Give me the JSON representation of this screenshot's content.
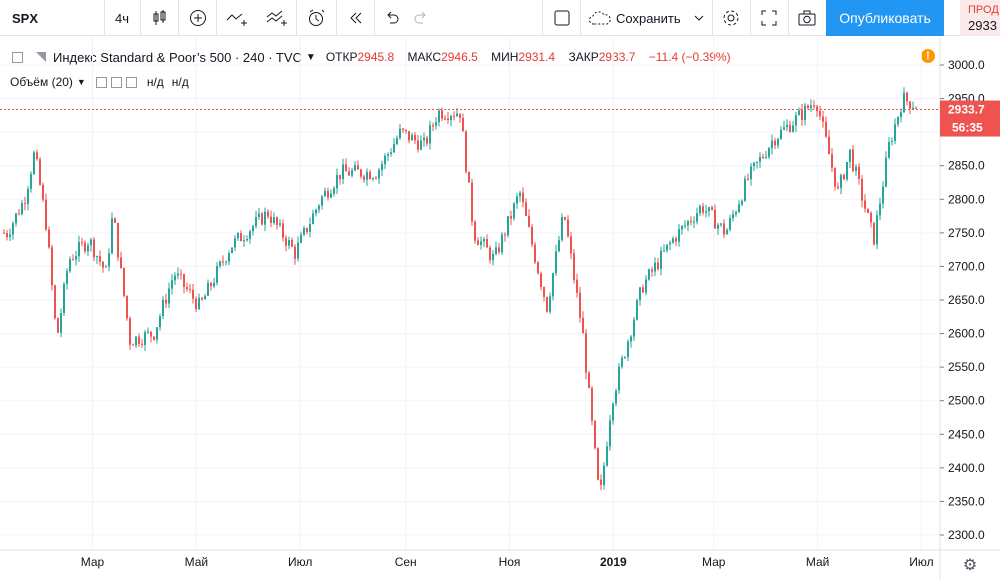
{
  "toolbar": {
    "symbol": "SPX",
    "interval": "4ч",
    "save_label": "Сохранить",
    "publish_label": "Опубликовать",
    "sell_label": "ПРОД",
    "sell_price": "2933"
  },
  "legend": {
    "title": "Индекс Standard & Poor’s 500 · 240 · TVC",
    "open_label": "ОТКР",
    "open": "2945.8",
    "high_label": "МАКС",
    "high": "2946.5",
    "low_label": "МИН",
    "low": "2931.4",
    "close_label": "ЗАКР",
    "close": "2933.7",
    "change": "−11.4 (−0.39%)",
    "volume_label": "Объём (20)",
    "volume_na1": "н/д",
    "volume_na2": "н/д",
    "warning": "!"
  },
  "price_scale": {
    "last_price": "2933.7",
    "countdown": "56:35"
  },
  "colors": {
    "up": "#26a69a",
    "down": "#ef5350",
    "last_price": "#ef5350",
    "accent": "#2196f3"
  },
  "chart_data": {
    "type": "candlestick",
    "title": "Индекс Standard & Poor’s 500 · 240 · TVC",
    "ylim": [
      2300,
      3000
    ],
    "y_ticks": [
      2300,
      2350,
      2400,
      2450,
      2500,
      2550,
      2600,
      2650,
      2700,
      2750,
      2800,
      2850,
      2900,
      2950,
      3000
    ],
    "x_ticks": [
      "Мар",
      "Май",
      "Июл",
      "Сен",
      "Ноя",
      "2019",
      "Мар",
      "Май",
      "Июл"
    ],
    "grid": true,
    "last_price": 2933.7,
    "series": [
      {
        "x": [
          "2018-01-10",
          "2018-01-20",
          "2018-01-26",
          "2018-02-02",
          "2018-02-08",
          "2018-02-15",
          "2018-02-27",
          "2018-03-09",
          "2018-03-13",
          "2018-03-23",
          "2018-04-06",
          "2018-04-18",
          "2018-05-03",
          "2018-05-21",
          "2018-06-12",
          "2018-06-28",
          "2018-07-13",
          "2018-07-25",
          "2018-08-15",
          "2018-08-29",
          "2018-09-12",
          "2018-09-20",
          "2018-10-03",
          "2018-10-11",
          "2018-10-23",
          "2018-11-07",
          "2018-11-23",
          "2018-12-03",
          "2018-12-14",
          "2018-12-24",
          "2018-12-31",
          "2019-01-18",
          "2019-02-05",
          "2019-02-22",
          "2019-03-08",
          "2019-03-21",
          "2019-04-05",
          "2019-04-23",
          "2019-04-30",
          "2019-05-13",
          "2019-05-20",
          "2019-06-03",
          "2019-06-12",
          "2019-06-20",
          "2019-06-28"
        ],
        "close": [
          2750,
          2800,
          2870,
          2760,
          2590,
          2710,
          2740,
          2690,
          2780,
          2590,
          2600,
          2690,
          2640,
          2730,
          2780,
          2720,
          2800,
          2840,
          2840,
          2900,
          2880,
          2930,
          2930,
          2750,
          2710,
          2810,
          2640,
          2780,
          2600,
          2350,
          2500,
          2670,
          2740,
          2790,
          2750,
          2830,
          2890,
          2930,
          2950,
          2810,
          2870,
          2740,
          2880,
          2950,
          2940
        ]
      }
    ]
  }
}
